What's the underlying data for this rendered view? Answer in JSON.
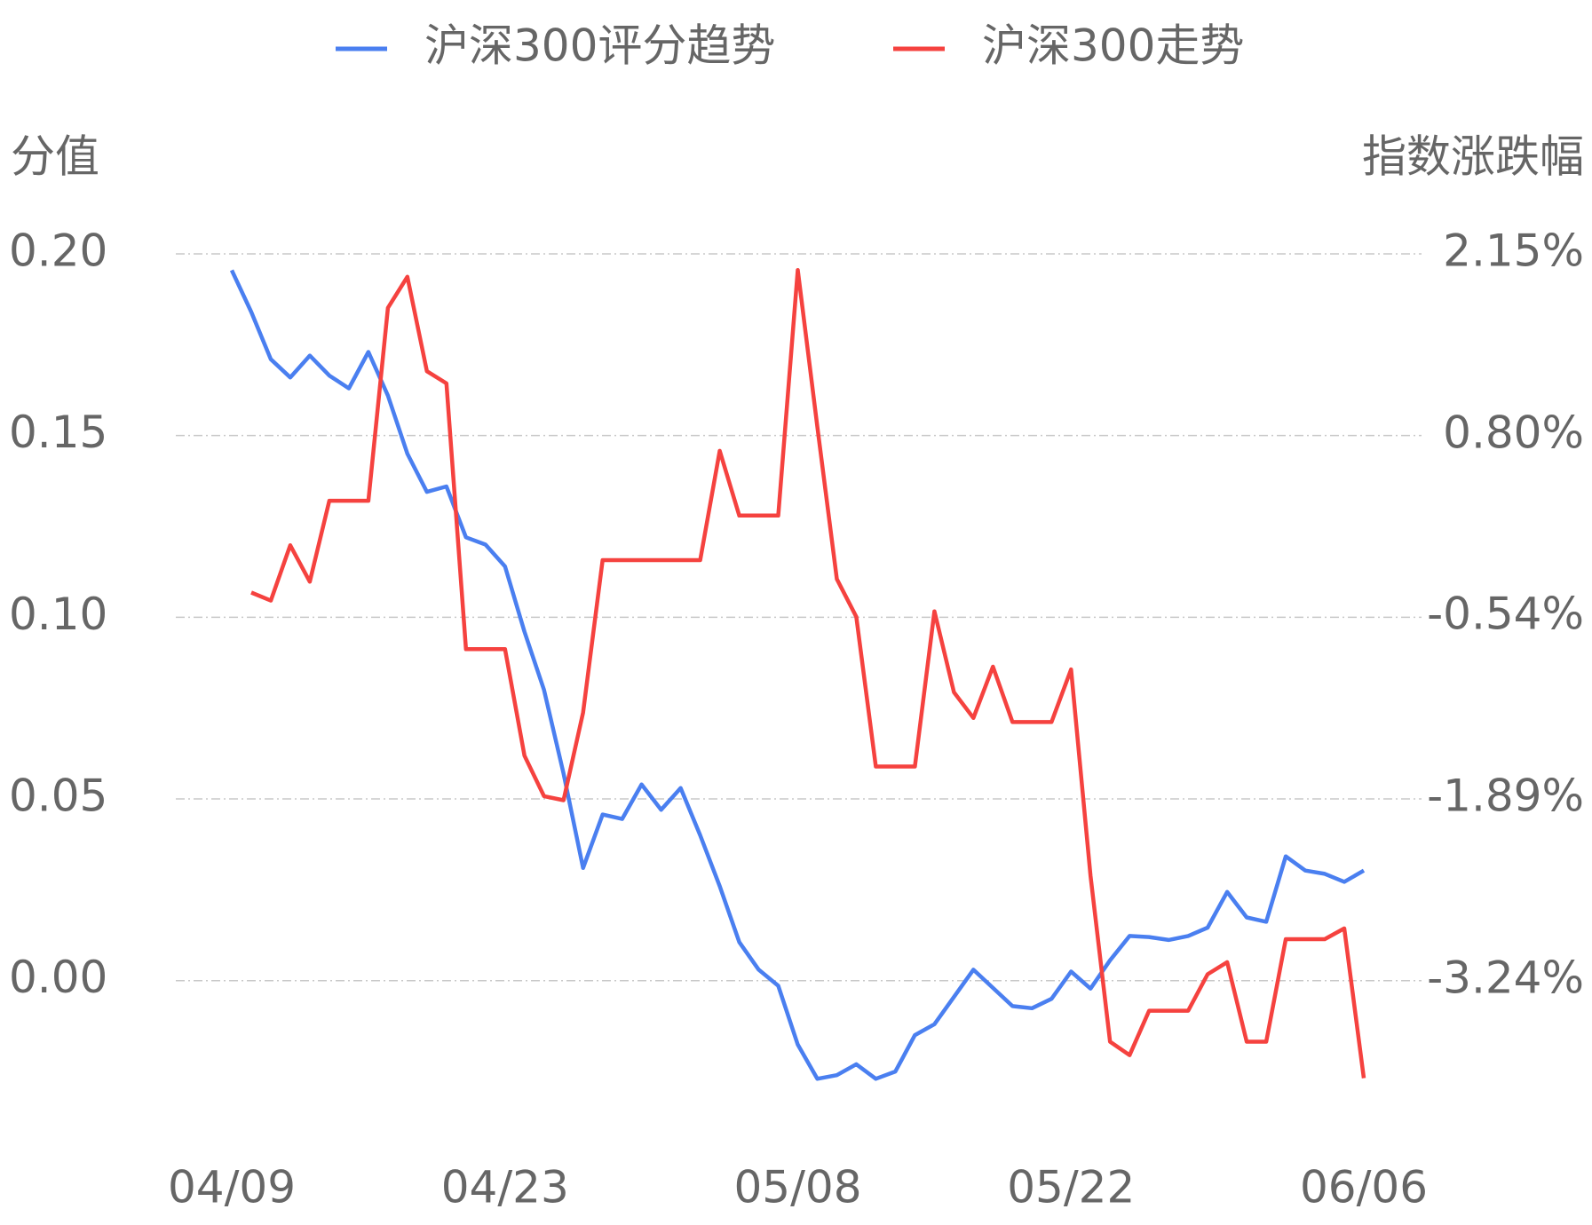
{
  "chart_data": {
    "type": "line",
    "y_label": "分值",
    "y2_label": "指数涨跌幅",
    "categories": [
      "04/09",
      null,
      null,
      null,
      null,
      null,
      null,
      null,
      null,
      null,
      null,
      null,
      null,
      null,
      "04/23",
      null,
      null,
      null,
      null,
      null,
      null,
      null,
      null,
      null,
      null,
      null,
      null,
      null,
      null,
      "05/08",
      null,
      null,
      null,
      null,
      null,
      null,
      null,
      null,
      null,
      null,
      null,
      null,
      null,
      "05/22",
      null,
      null,
      null,
      null,
      null,
      null,
      null,
      null,
      null,
      null,
      null,
      null,
      null,
      null,
      "06/06"
    ],
    "series": [
      {
        "name": "沪深300评分趋势",
        "color": "#4a7ff0",
        "values": [
          0.1955,
          0.184,
          0.171,
          0.166,
          0.172,
          0.1665,
          0.163,
          0.173,
          0.161,
          0.145,
          0.1345,
          0.136,
          0.122,
          0.12,
          0.114,
          0.096,
          0.08,
          0.057,
          0.031,
          0.0457,
          0.0445,
          0.054,
          0.047,
          0.053,
          0.04,
          0.026,
          0.0106,
          0.003,
          -0.0014,
          -0.0176,
          -0.027,
          -0.026,
          -0.023,
          -0.027,
          -0.025,
          -0.015,
          -0.012,
          -0.0045,
          0.003,
          -0.002,
          -0.007,
          -0.0076,
          -0.005,
          0.0025,
          -0.0022,
          0.0056,
          0.0123,
          0.012,
          0.0112,
          0.0123,
          0.0146,
          0.0244,
          0.0174,
          0.0162,
          0.0342,
          0.0303,
          0.0294,
          0.0272,
          0.0303
        ]
      },
      {
        "name": "沪深300走势",
        "color": "#f5423f",
        "axis": "y2",
        "values": [
          null,
          -0.36,
          -0.42,
          -0.01,
          -0.28,
          0.32,
          0.32,
          0.32,
          1.75,
          1.98,
          1.28,
          1.19,
          -0.78,
          -0.78,
          -0.78,
          -1.57,
          -1.87,
          -1.9,
          -1.25,
          -0.12,
          -0.12,
          -0.12,
          -0.12,
          -0.12,
          -0.12,
          0.69,
          0.21,
          0.21,
          0.21,
          2.03,
          0.87,
          -0.26,
          -0.54,
          -1.65,
          -1.65,
          -1.65,
          -0.5,
          -1.1,
          -1.29,
          -0.91,
          -1.32,
          -1.32,
          -1.32,
          -0.93,
          -2.46,
          -3.69,
          -3.79,
          -3.46,
          -3.46,
          -3.46,
          -3.19,
          -3.1,
          -3.69,
          -3.69,
          -2.93,
          -2.93,
          -2.93,
          -2.85,
          -3.96
        ]
      }
    ],
    "ylim": [
      -0.035,
      0.2
    ],
    "yticks": [
      {
        "value": 0,
        "label": "0.00"
      },
      {
        "value": 0.05,
        "label": "0.05"
      },
      {
        "value": 0.1,
        "label": "0.10"
      },
      {
        "value": 0.15,
        "label": "0.15"
      },
      {
        "value": 0.2,
        "label": "0.20"
      }
    ],
    "y2lim": [
      -4.18,
      2.15
    ],
    "y2ticks": [
      {
        "value": -3.24,
        "label": "-3.24%"
      },
      {
        "value": -1.89,
        "label": "-1.89%"
      },
      {
        "value": -0.54,
        "label": "-0.54%"
      },
      {
        "value": 0.8,
        "label": "0.80%"
      },
      {
        "value": 2.15,
        "label": "2.15%"
      }
    ],
    "grid": true,
    "legend": "top"
  }
}
